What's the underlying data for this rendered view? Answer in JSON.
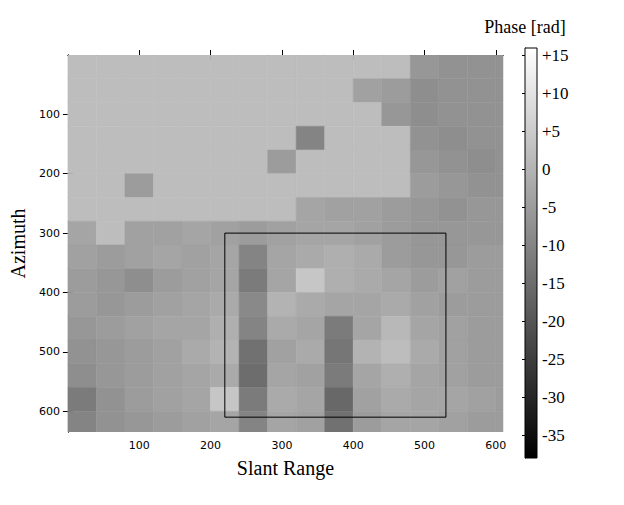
{
  "chart_data": {
    "type": "heatmap",
    "x_label": "Slant Range",
    "y_label": "Azimuth",
    "xlim": [
      0,
      610
    ],
    "ylim": [
      0,
      635
    ],
    "xticks": [
      100,
      200,
      300,
      400,
      500,
      600
    ],
    "yticks": [
      100,
      200,
      300,
      400,
      500,
      600
    ],
    "cells": {
      "x": [
        20,
        60,
        100,
        140,
        180,
        220,
        260,
        300,
        340,
        380,
        420,
        460,
        500,
        540,
        580,
        620
      ],
      "y": [
        20,
        60,
        100,
        140,
        180,
        220,
        260,
        300,
        340,
        380,
        420,
        460,
        500,
        540,
        580,
        620
      ],
      "values": [
        [
          2,
          2,
          2,
          2,
          2,
          2,
          2,
          2,
          2,
          2,
          2,
          2,
          -6,
          -7,
          -7,
          -7
        ],
        [
          2,
          2,
          2,
          2,
          2,
          2,
          2,
          2,
          2,
          2,
          -4,
          -5,
          -8,
          -7,
          -7,
          -7
        ],
        [
          2,
          2,
          2,
          2,
          2,
          2,
          2,
          2,
          2,
          2,
          2,
          -6,
          -8,
          -7,
          -7,
          -7
        ],
        [
          2,
          2,
          2,
          2,
          2,
          2,
          2,
          2,
          -10,
          2,
          2,
          2,
          -7,
          -8,
          -7,
          -7
        ],
        [
          2,
          2,
          2,
          2,
          2,
          2,
          2,
          -5,
          2,
          2,
          2,
          2,
          -6,
          -7,
          -8,
          -7
        ],
        [
          2,
          2,
          -5,
          2,
          2,
          2,
          2,
          2,
          2,
          2,
          2,
          2,
          -5,
          -6,
          -7,
          -7
        ],
        [
          2,
          2,
          2,
          2,
          2,
          2,
          2,
          2,
          -3,
          -4,
          -4,
          -5,
          -6,
          -7,
          -6,
          -6
        ],
        [
          -3,
          2,
          -4,
          -4,
          -3,
          -4,
          -5,
          -4,
          -3,
          -3,
          -4,
          -5,
          -6,
          -6,
          -6,
          -6
        ],
        [
          -4,
          -5,
          -4,
          -3,
          -4,
          -3,
          -10,
          -3,
          -2,
          -1,
          -2,
          -5,
          -6,
          -6,
          -5,
          -5
        ],
        [
          -5,
          -6,
          -8,
          -5,
          -4,
          -3,
          -12,
          -3,
          4,
          -1,
          -2,
          -3,
          -5,
          -4,
          -5,
          -5
        ],
        [
          -5,
          -6,
          -5,
          -4,
          -3,
          -2,
          -9,
          0,
          -2,
          -3,
          -3,
          -2,
          -4,
          -5,
          -5,
          -5
        ],
        [
          -6,
          -5,
          -4,
          -3,
          -3,
          -1,
          -10,
          -2,
          -3,
          -12,
          -3,
          1,
          -3,
          -4,
          -5,
          -5
        ],
        [
          -7,
          -6,
          -5,
          -4,
          -2,
          0,
          -14,
          -4,
          -2,
          -13,
          0,
          2,
          -2,
          -4,
          -5,
          -5
        ],
        [
          -8,
          -6,
          -5,
          -4,
          -3,
          -2,
          -15,
          -3,
          -4,
          -12,
          -3,
          -1,
          -3,
          -4,
          -5,
          -5
        ],
        [
          -12,
          -7,
          -5,
          -4,
          -3,
          4,
          -12,
          -2,
          -3,
          -16,
          -4,
          -2,
          -3,
          -3,
          -4,
          -5
        ],
        [
          -10,
          -7,
          -6,
          -5,
          -4,
          -3,
          -10,
          -3,
          -4,
          -14,
          -5,
          -3,
          -3,
          -4,
          -5,
          -5
        ]
      ]
    },
    "colorbar": {
      "title": "Phase [rad]",
      "lim": [
        -38,
        16
      ],
      "ticks": [
        {
          "value": 15,
          "label": "+15"
        },
        {
          "value": 10,
          "label": "+10"
        },
        {
          "value": 5,
          "label": "+5"
        },
        0,
        -5,
        -10,
        -15,
        -20,
        -25,
        -30,
        -35
      ]
    },
    "box": {
      "x": [
        220,
        530
      ],
      "y": [
        300,
        610
      ]
    }
  }
}
